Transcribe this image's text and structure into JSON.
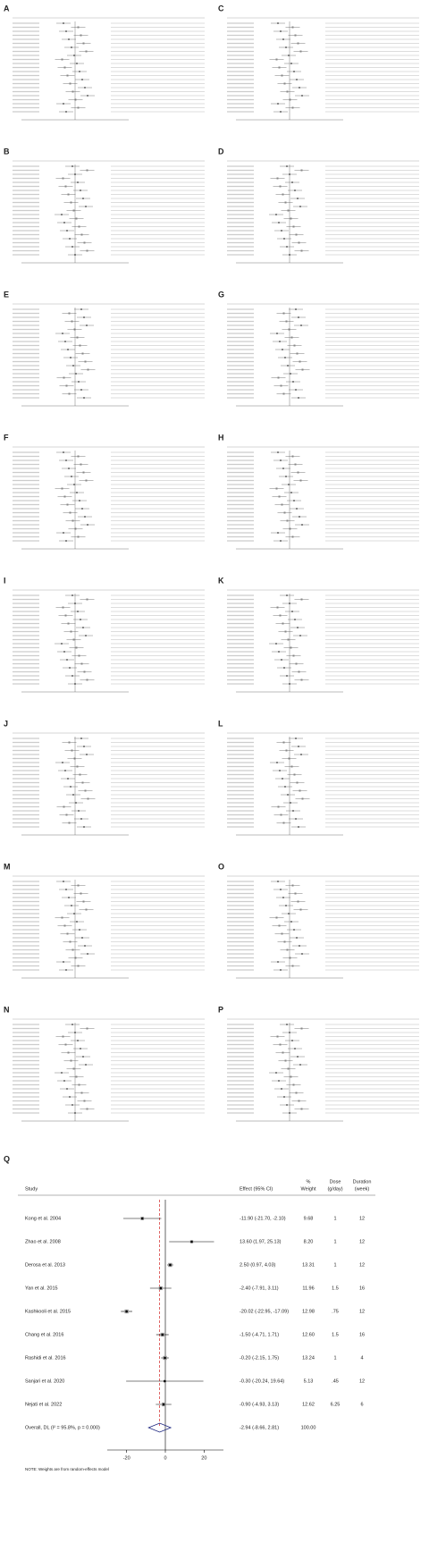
{
  "panels": [
    {
      "letter": "A"
    },
    {
      "letter": "C"
    },
    {
      "letter": "B"
    },
    {
      "letter": "D"
    },
    {
      "letter": "E"
    },
    {
      "letter": "G"
    },
    {
      "letter": "F"
    },
    {
      "letter": "H"
    },
    {
      "letter": "I"
    },
    {
      "letter": "K"
    },
    {
      "letter": "J"
    },
    {
      "letter": "L"
    },
    {
      "letter": "M"
    },
    {
      "letter": "O"
    },
    {
      "letter": "N"
    },
    {
      "letter": "P"
    }
  ],
  "chart_data": {
    "type": "forest",
    "panel_letter": "Q",
    "headers": {
      "study": "Study",
      "effect": "Effect (95% CI)",
      "weight_top": "%",
      "weight": "Weight",
      "dose_top": "Dose",
      "dose": "(g/day)",
      "duration_top": "Duration",
      "duration": "(week)"
    },
    "categories": [
      "Kong et al. 2004",
      "Zhao et al. 2008",
      "Derosa et al. 2013",
      "Yan et al. 2015",
      "Kashkooli et al. 2015",
      "Chang et al. 2016",
      "Rashidi et al. 2016",
      "Sanjari et al. 2020",
      "Nejati et al. 2022",
      "Overall, DL (I² = 95.8%, p = 0.000)"
    ],
    "values": [
      -11.9,
      13.6,
      2.5,
      -2.4,
      -20.02,
      -1.5,
      -0.2,
      -0.3,
      -0.9,
      -2.94
    ],
    "lower": [
      -21.7,
      1.97,
      0.97,
      -7.91,
      -22.95,
      -4.71,
      -2.15,
      -20.24,
      -4.93,
      -8.66
    ],
    "upper": [
      -2.1,
      25.13,
      4.03,
      3.11,
      -17.09,
      1.71,
      1.75,
      19.64,
      3.13,
      2.81
    ],
    "value_labels": [
      "-11.90 (-21.70, -2.10)",
      "13.60 (1.97, 25.13)",
      "2.50 (0.97, 4.03)",
      "-2.40 (-7.91, 3.11)",
      "-20.02 (-22.95, -17.09)",
      "-1.50 (-4.71, 1.71)",
      "-0.20 (-2.15, 1.75)",
      "-0.30 (-20.24, 19.64)",
      "-0.90 (-4.93, 3.13)",
      "-2.94 (-8.66, 2.81)"
    ],
    "weights": [
      9.68,
      8.2,
      13.31,
      11.96,
      12.98,
      12.6,
      13.24,
      5.13,
      12.62,
      100.0
    ],
    "weight_labels": [
      "9.68",
      "8.20",
      "13.31",
      "11.96",
      "12.98",
      "12.60",
      "13.24",
      "5.13",
      "12.62",
      "100.00"
    ],
    "dose": [
      "1",
      "1",
      "1",
      "1.5",
      ".75",
      "1.5",
      "1",
      ".45",
      "6.25",
      null
    ],
    "duration": [
      12,
      12,
      12,
      16,
      12,
      16,
      4,
      12,
      6,
      null
    ],
    "xlim": [
      -30,
      30
    ],
    "xticks": [
      -20,
      0,
      20
    ],
    "note": "NOTE: Weights are from random-effects model"
  }
}
